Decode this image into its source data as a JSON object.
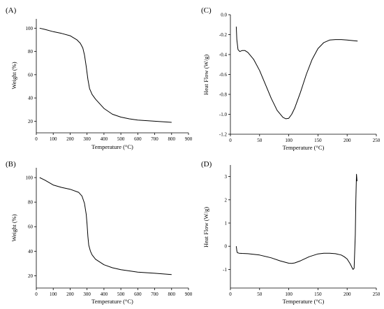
{
  "chart_data": [
    {
      "type": "line",
      "panel_label": "(A)",
      "xlabel": "Temperature (°C)",
      "ylabel": "Weight (%)",
      "xlim": [
        0,
        900
      ],
      "ylim": [
        10,
        108
      ],
      "xticks": [
        0,
        100,
        200,
        300,
        400,
        500,
        600,
        700,
        800,
        900
      ],
      "yticks": [
        20,
        40,
        60,
        80,
        100
      ],
      "x": [
        20,
        50,
        100,
        150,
        200,
        240,
        260,
        275,
        285,
        295,
        305,
        315,
        330,
        350,
        400,
        450,
        500,
        550,
        600,
        700,
        800
      ],
      "y": [
        100,
        99,
        97,
        95.5,
        93.5,
        90,
        87,
        83,
        77,
        67,
        56,
        48,
        43,
        39,
        31,
        26,
        23.5,
        22,
        21,
        20,
        19
      ]
    },
    {
      "type": "line",
      "panel_label": "(C)",
      "xlabel": "Temperature (°C)",
      "ylabel": "Heat Flow (W/g)",
      "xlim": [
        0,
        250
      ],
      "ylim": [
        -1.2,
        0
      ],
      "xticks": [
        0,
        50,
        100,
        150,
        200,
        250
      ],
      "yticks": [
        -1.2,
        -1.0,
        -0.8,
        -0.6,
        -0.4,
        -0.2,
        0.0
      ],
      "ytick_labels": [
        "-1.2",
        "-1.0",
        "-0.8",
        "-0.6",
        "-0.4",
        "-0.2",
        "0.0"
      ],
      "x": [
        10,
        11,
        13,
        16,
        20,
        25,
        30,
        40,
        50,
        60,
        70,
        80,
        90,
        95,
        100,
        105,
        110,
        120,
        130,
        140,
        150,
        160,
        170,
        180,
        190,
        200,
        210,
        218
      ],
      "y": [
        -0.12,
        -0.25,
        -0.35,
        -0.37,
        -0.36,
        -0.36,
        -0.38,
        -0.45,
        -0.56,
        -0.7,
        -0.84,
        -0.96,
        -1.03,
        -1.045,
        -1.04,
        -1.0,
        -0.94,
        -0.78,
        -0.6,
        -0.45,
        -0.34,
        -0.28,
        -0.255,
        -0.25,
        -0.25,
        -0.255,
        -0.26,
        -0.265
      ]
    },
    {
      "type": "line",
      "panel_label": "(B)",
      "xlabel": "Temperature (°C)",
      "ylabel": "Weight (%)",
      "xlim": [
        0,
        900
      ],
      "ylim": [
        10,
        108
      ],
      "xticks": [
        0,
        100,
        200,
        300,
        400,
        500,
        600,
        700,
        800,
        900
      ],
      "yticks": [
        20,
        40,
        60,
        80,
        100
      ],
      "x": [
        20,
        50,
        100,
        150,
        200,
        250,
        270,
        285,
        295,
        300,
        305,
        310,
        320,
        330,
        350,
        400,
        450,
        500,
        600,
        700,
        800
      ],
      "y": [
        100,
        98,
        94,
        92,
        90.5,
        88,
        85,
        79,
        70,
        62,
        52,
        45,
        40,
        37,
        33.5,
        29,
        26.5,
        25,
        23,
        22,
        21
      ]
    },
    {
      "type": "line",
      "panel_label": "(D)",
      "xlabel": "Temperature (°C)",
      "ylabel": "Heat Flow (W/g)",
      "xlim": [
        0,
        250
      ],
      "ylim": [
        -1.8,
        3.5
      ],
      "xticks": [
        0,
        50,
        100,
        150,
        200,
        250
      ],
      "yticks": [
        -1,
        0,
        1,
        2,
        3
      ],
      "x": [
        10,
        11,
        12,
        15,
        20,
        30,
        50,
        70,
        85,
        100,
        105,
        110,
        120,
        135,
        150,
        160,
        170,
        180,
        190,
        195,
        200,
        205,
        208,
        210,
        212,
        214,
        215,
        216,
        217
      ],
      "y": [
        0,
        -0.2,
        -0.28,
        -0.3,
        -0.31,
        -0.32,
        -0.38,
        -0.5,
        -0.63,
        -0.73,
        -0.74,
        -0.72,
        -0.63,
        -0.45,
        -0.33,
        -0.3,
        -0.3,
        -0.32,
        -0.38,
        -0.45,
        -0.55,
        -0.75,
        -0.9,
        -1.0,
        -0.95,
        0.5,
        2.0,
        3.1,
        2.8
      ]
    }
  ]
}
